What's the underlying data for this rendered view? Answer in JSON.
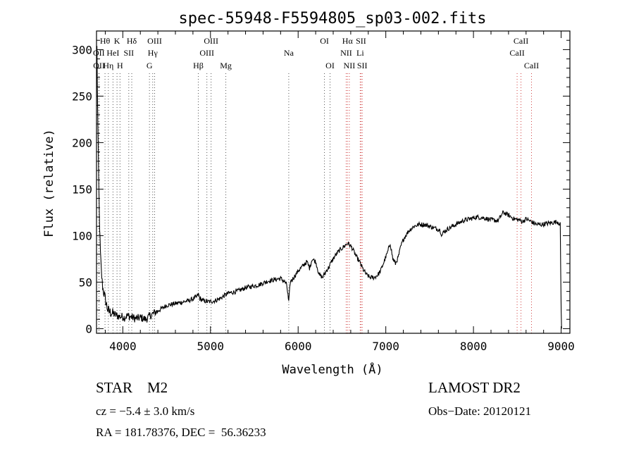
{
  "chart_data": {
    "type": "line",
    "title": "spec-55948-F5594805_sp03-002.fits",
    "xlabel": "Wavelength (Å)",
    "ylabel": "Flux (relative)",
    "xlim": [
      3700,
      9100
    ],
    "ylim": [
      -5,
      320
    ],
    "xticks": [
      4000,
      5000,
      6000,
      7000,
      8000,
      9000
    ],
    "yticks": [
      0,
      50,
      100,
      150,
      200,
      250,
      300
    ],
    "series": [
      {
        "name": "flux",
        "x": [
          3705,
          3715,
          3725,
          3735,
          3745,
          3755,
          3765,
          3775,
          3785,
          3800,
          3815,
          3830,
          3850,
          3870,
          3890,
          3910,
          3935,
          3960,
          3990,
          4020,
          4050,
          4080,
          4110,
          4140,
          4170,
          4200,
          4230,
          4260,
          4290,
          4310,
          4330,
          4360,
          4400,
          4450,
          4500,
          4550,
          4600,
          4650,
          4700,
          4750,
          4800,
          4840,
          4862,
          4880,
          4920,
          4960,
          5000,
          5050,
          5100,
          5150,
          5200,
          5250,
          5300,
          5350,
          5400,
          5450,
          5500,
          5550,
          5600,
          5650,
          5700,
          5750,
          5800,
          5850,
          5870,
          5893,
          5910,
          5950,
          6000,
          6050,
          6100,
          6130,
          6160,
          6200,
          6240,
          6280,
          6320,
          6350,
          6380,
          6420,
          6470,
          6520,
          6563,
          6590,
          6620,
          6660,
          6700,
          6740,
          6780,
          6820,
          6870,
          6910,
          6940,
          6980,
          7020,
          7050,
          7080,
          7110,
          7140,
          7170,
          7200,
          7260,
          7320,
          7380,
          7440,
          7500,
          7560,
          7620,
          7640,
          7660,
          7720,
          7800,
          7880,
          7960,
          8040,
          8120,
          8200,
          8280,
          8340,
          8400,
          8460,
          8520,
          8560,
          8600,
          8640,
          8680,
          8720,
          8780,
          8840,
          8900,
          8960,
          8990,
          9000,
          9005
        ],
        "values": [
          302,
          220,
          160,
          110,
          80,
          62,
          50,
          42,
          38,
          32,
          25,
          20,
          18,
          17,
          16,
          15,
          14,
          13,
          13,
          12,
          14,
          13,
          12,
          11,
          11,
          12,
          11,
          10,
          12,
          14,
          15,
          17,
          19,
          22,
          25,
          26,
          27,
          28,
          29,
          30,
          32,
          34,
          37,
          32,
          30,
          29,
          29,
          30,
          32,
          35,
          38,
          39,
          40,
          42,
          44,
          45,
          46,
          47,
          49,
          51,
          52,
          53,
          54,
          50,
          47,
          28,
          50,
          55,
          62,
          67,
          72,
          65,
          75,
          72,
          58,
          55,
          62,
          66,
          72,
          78,
          84,
          88,
          92,
          90,
          86,
          78,
          72,
          64,
          58,
          55,
          55,
          58,
          62,
          72,
          82,
          92,
          75,
          70,
          76,
          88,
          96,
          105,
          110,
          112,
          112,
          110,
          108,
          106,
          100,
          104,
          108,
          112,
          116,
          118,
          120,
          119,
          117,
          116,
          125,
          122,
          118,
          117,
          115,
          118,
          116,
          114,
          112,
          112,
          113,
          114,
          115,
          112,
          20,
          0
        ]
      }
    ],
    "lines": [
      {
        "label": "Hθ",
        "x": 3797,
        "row": 1,
        "color": "#555555"
      },
      {
        "label": "K",
        "x": 3934,
        "row": 1,
        "color": "#555555"
      },
      {
        "label": "Hδ",
        "x": 4102,
        "row": 1,
        "color": "#555555"
      },
      {
        "label": "OIII",
        "x": 4363,
        "row": 1,
        "color": "#555555"
      },
      {
        "label": "OIII",
        "x": 5007,
        "row": 1,
        "color": "#555555"
      },
      {
        "label": "OI",
        "x": 6300,
        "row": 1,
        "color": "#555555"
      },
      {
        "label": "Hα",
        "x": 6563,
        "row": 1,
        "color": "#d04040"
      },
      {
        "label": "SII",
        "x": 6717,
        "row": 1,
        "color": "#d04040"
      },
      {
        "label": "CaII",
        "x": 8542,
        "row": 1,
        "color": "#d04040"
      },
      {
        "label": "OII",
        "x": 3727,
        "row": 2,
        "color": "#555555"
      },
      {
        "label": "HeI",
        "x": 3888,
        "row": 2,
        "color": "#555555"
      },
      {
        "label": "SII",
        "x": 4068,
        "row": 2,
        "color": "#555555"
      },
      {
        "label": "Hγ",
        "x": 4341,
        "row": 2,
        "color": "#555555"
      },
      {
        "label": "OIII",
        "x": 4959,
        "row": 2,
        "color": "#555555"
      },
      {
        "label": "Na",
        "x": 5893,
        "row": 2,
        "color": "#555555"
      },
      {
        "label": "NII",
        "x": 6548,
        "row": 2,
        "color": "#d04040"
      },
      {
        "label": "Li",
        "x": 6708,
        "row": 2,
        "color": "#d04040"
      },
      {
        "label": "CaII",
        "x": 8498,
        "row": 2,
        "color": "#d04040"
      },
      {
        "label": "OII",
        "x": 3729,
        "row": 3,
        "color": "#555555"
      },
      {
        "label": "Hη",
        "x": 3835,
        "row": 3,
        "color": "#555555"
      },
      {
        "label": "H",
        "x": 3968,
        "row": 3,
        "color": "#555555"
      },
      {
        "label": "G",
        "x": 4304,
        "row": 3,
        "color": "#555555"
      },
      {
        "label": "Hβ",
        "x": 4861,
        "row": 3,
        "color": "#555555"
      },
      {
        "label": "Mg",
        "x": 5175,
        "row": 3,
        "color": "#555555"
      },
      {
        "label": "OI",
        "x": 6364,
        "row": 3,
        "color": "#555555"
      },
      {
        "label": "NII",
        "x": 6584,
        "row": 3,
        "color": "#d04040"
      },
      {
        "label": "SII",
        "x": 6731,
        "row": 3,
        "color": "#d04040"
      },
      {
        "label": "CaII",
        "x": 8662,
        "row": 3,
        "color": "#d04040"
      }
    ]
  },
  "info": {
    "object_class": "STAR    M2",
    "survey": "LAMOST DR2",
    "cz": "cz = −5.4 ± 3.0 km/s",
    "obs_date": "Obs−Date: 20120121",
    "radec": "RA = 181.78376, DEC =  56.36233"
  }
}
